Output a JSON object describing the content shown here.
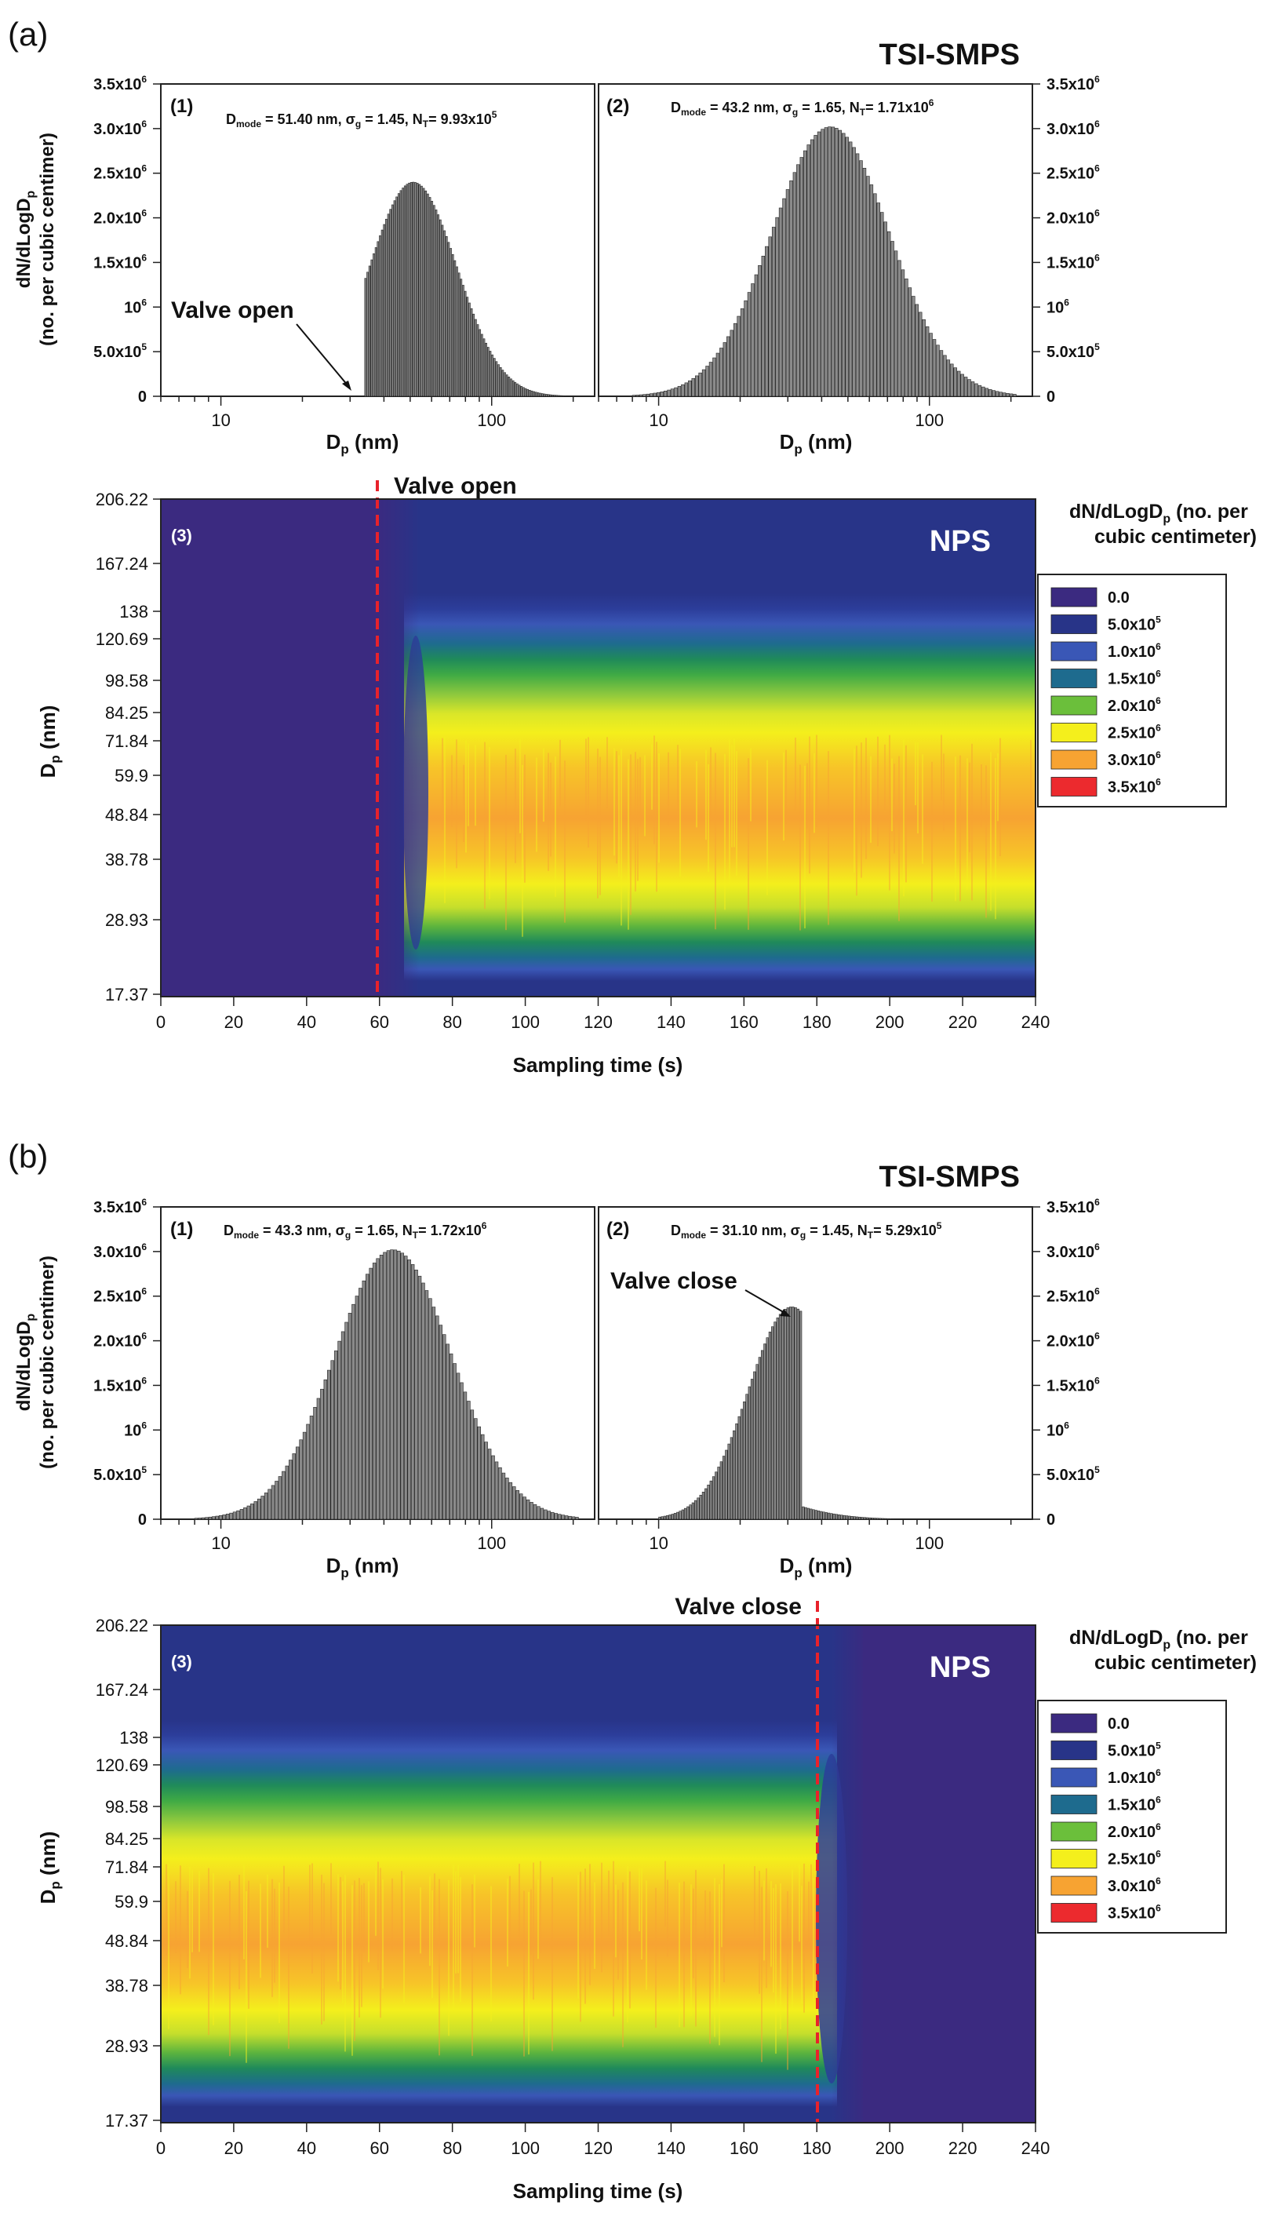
{
  "panels": [
    {
      "letter": "(a)",
      "instrument": "TSI-SMPS",
      "hist_left": {
        "label": "(1)",
        "stats": {
          "main": "D",
          "sub": "mode",
          "rest": " = 51.40 nm, σ",
          "sub2": "g",
          "rest2": " = 1.45, N",
          "sub3": "T",
          "rest3": "= 9.93x10",
          "sup": "5"
        },
        "annotation": "Valve open"
      },
      "hist_right": {
        "label": "(2)",
        "stats": {
          "main": "D",
          "sub": "mode",
          "rest": " = 43.2 nm, σ",
          "sub2": "g",
          "rest2": " = 1.65, N",
          "sub3": "T",
          "rest3": "= 1.71x10",
          "sup": "6"
        }
      },
      "contour": {
        "label": "(3)",
        "instrument": "NPS",
        "valve_label": "Valve open"
      }
    },
    {
      "letter": "(b)",
      "instrument": "TSI-SMPS",
      "hist_left": {
        "label": "(1)",
        "stats": {
          "main": "D",
          "sub": "mode",
          "rest": " = 43.3 nm, σ",
          "sub2": "g",
          "rest2": " = 1.65, N",
          "sub3": "T",
          "rest3": "= 1.72x10",
          "sup": "6"
        }
      },
      "hist_right": {
        "label": "(2)",
        "stats": {
          "main": "D",
          "sub": "mode",
          "rest": " = 31.10 nm, σ",
          "sub2": "g",
          "rest2": " = 1.45, N",
          "sub3": "T",
          "rest3": "= 5.29x10",
          "sup": "5"
        },
        "annotation": "Valve close"
      },
      "contour": {
        "label": "(3)",
        "instrument": "NPS",
        "valve_label": "Valve close"
      }
    }
  ],
  "hist_axes": {
    "ylabel_line1": "dN/dLogD",
    "ylabel_line1_sub": "p",
    "ylabel_line2": "(no. per cubic centimer)",
    "xlabel": "D",
    "xlabel_sub": "p",
    "xlabel_unit": " (nm)",
    "y_ticks": [
      {
        "v": 0,
        "m": "0",
        "e": ""
      },
      {
        "v": 500000,
        "m": "5.0x10",
        "e": "5"
      },
      {
        "v": 1000000,
        "m": "10",
        "e": "6"
      },
      {
        "v": 1500000,
        "m": "1.5x10",
        "e": "6"
      },
      {
        "v": 2000000,
        "m": "2.0x10",
        "e": "6"
      },
      {
        "v": 2500000,
        "m": "2.5x10",
        "e": "6"
      },
      {
        "v": 3000000,
        "m": "3.0x10",
        "e": "6"
      },
      {
        "v": 3500000,
        "m": "3.5x10",
        "e": "6"
      }
    ],
    "x_ticks": [
      {
        "v": 10,
        "t": "10"
      },
      {
        "v": 100,
        "t": "100"
      }
    ],
    "xlim": [
      6,
      240
    ],
    "ylim": [
      0,
      3500000
    ],
    "x_scale": "log"
  },
  "contour_axes": {
    "ylabel": "D",
    "ylabel_sub": "p",
    "ylabel_unit": " (nm)",
    "xlabel": "Sampling time (s)",
    "y_ticks": [
      "206.22",
      "167.24",
      "138",
      "120.69",
      "98.58",
      "84.25",
      "71.84",
      "59.9",
      "48.84",
      "38.78",
      "28.93",
      "17.37"
    ],
    "x_ticks": [
      "0",
      "20",
      "40",
      "60",
      "80",
      "100",
      "120",
      "140",
      "160",
      "180",
      "200",
      "220",
      "240"
    ],
    "legend_title_line1": "dN/dLogD",
    "legend_title_sub": "p",
    "legend_title_rest": " (no. per",
    "legend_title_line2": "cubic centimeter)",
    "legend": [
      {
        "m": "0.0",
        "e": "",
        "color": "#3b2a80"
      },
      {
        "m": "5.0x10",
        "e": "5",
        "color": "#283488"
      },
      {
        "m": "1.0x10",
        "e": "6",
        "color": "#3a57b6"
      },
      {
        "m": "1.5x10",
        "e": "6",
        "color": "#1e6b8e"
      },
      {
        "m": "2.0x10",
        "e": "6",
        "color": "#6bbf3b"
      },
      {
        "m": "2.5x10",
        "e": "6",
        "color": "#f4ef1c"
      },
      {
        "m": "3.0x10",
        "e": "6",
        "color": "#f7a332"
      },
      {
        "m": "3.5x10",
        "e": "6",
        "color": "#ec2a2e"
      }
    ]
  },
  "chart_data": [
    {
      "type": "bar",
      "panel": "(a)(1)",
      "x_scale": "log",
      "xlim": [
        6,
        240
      ],
      "ylim": [
        0,
        3500000
      ],
      "mode_nm": 51.4,
      "sigma_g": 1.45,
      "peak": 2400000,
      "cutoff_nm": 34,
      "x_range": [
        30,
        210
      ],
      "annotations": [
        "Valve open"
      ]
    },
    {
      "type": "bar",
      "panel": "(a)(2)",
      "x_scale": "log",
      "xlim": [
        6,
        240
      ],
      "ylim": [
        0,
        3500000
      ],
      "mode_nm": 43.2,
      "sigma_g": 1.65,
      "peak": 3020000,
      "x_range": [
        8,
        210
      ]
    },
    {
      "type": "heatmap",
      "panel": "(a)(3)",
      "xlim": [
        0,
        240
      ],
      "valve_time_s": 60,
      "valve_event": "open",
      "y_ticks_nm": [
        206.22,
        167.24,
        138,
        120.69,
        98.58,
        84.25,
        71.84,
        59.9,
        48.84,
        38.78,
        28.93,
        17.37
      ],
      "peak_level": 3000000,
      "peak_diameter_nm": 43
    },
    {
      "type": "bar",
      "panel": "(b)(1)",
      "x_scale": "log",
      "xlim": [
        6,
        240
      ],
      "ylim": [
        0,
        3500000
      ],
      "mode_nm": 43.3,
      "sigma_g": 1.65,
      "peak": 3020000,
      "x_range": [
        8,
        210
      ]
    },
    {
      "type": "bar",
      "panel": "(b)(2)",
      "x_scale": "log",
      "xlim": [
        6,
        240
      ],
      "ylim": [
        0,
        3500000
      ],
      "mode_nm": 31.1,
      "sigma_g": 1.45,
      "peak": 2380000,
      "cutoff_nm": 34,
      "x_range": [
        10,
        110
      ],
      "annotations": [
        "Valve close"
      ]
    },
    {
      "type": "heatmap",
      "panel": "(b)(3)",
      "xlim": [
        0,
        240
      ],
      "valve_time_s": 180,
      "valve_event": "close",
      "y_ticks_nm": [
        206.22,
        167.24,
        138,
        120.69,
        98.58,
        84.25,
        71.84,
        59.9,
        48.84,
        38.78,
        28.93,
        17.37
      ],
      "peak_level": 3000000,
      "peak_diameter_nm": 43
    }
  ]
}
